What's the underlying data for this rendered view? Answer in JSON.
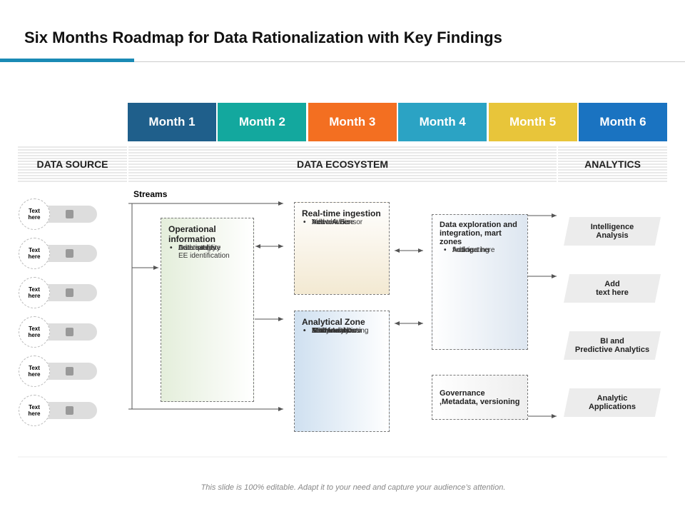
{
  "title": "Six Months Roadmap for Data Rationalization with Key Findings",
  "months": [
    "Month 1",
    "Month 2",
    "Month 3",
    "Month 4",
    "Month 5",
    "Month 6"
  ],
  "columns": [
    "DATA SOURCE",
    "DATA ECOSYSTEM",
    "ANALYTICS"
  ],
  "streams": "Streams",
  "sources": [
    "Text here",
    "Text here",
    "Text here",
    "Text here",
    "Text here",
    "Text here"
  ],
  "operational": {
    "title": "Operational information",
    "items": [
      "Data quality",
      "Data integrity",
      "Automated\nEE identification",
      "Add text here"
    ]
  },
  "realtime": {
    "title": "Real-time ingestion",
    "items": [
      "Video/Audio",
      "Network/Sensor",
      "Add text here"
    ]
  },
  "analytical": {
    "title": "Analytical Zone",
    "items": [
      "Atomic data",
      "Structured Data",
      "Test Analytics",
      "KDD",
      "Entity Analytics",
      "Machine Learning"
    ]
  },
  "exploration": {
    "title": "Data exploration and integration, mart zones",
    "items": [
      "finding",
      "Anticipating",
      "Add text here"
    ]
  },
  "governance": {
    "title": "Governance\n,Metadata, versioning"
  },
  "analytics": [
    "Intelligence\nAnalysis",
    "Add\ntext here",
    "BI and\nPredictive Analytics",
    "Analytic\nApplications"
  ],
  "footer": "This slide is 100% editable. Adapt it to your need and capture your audience’s attention."
}
